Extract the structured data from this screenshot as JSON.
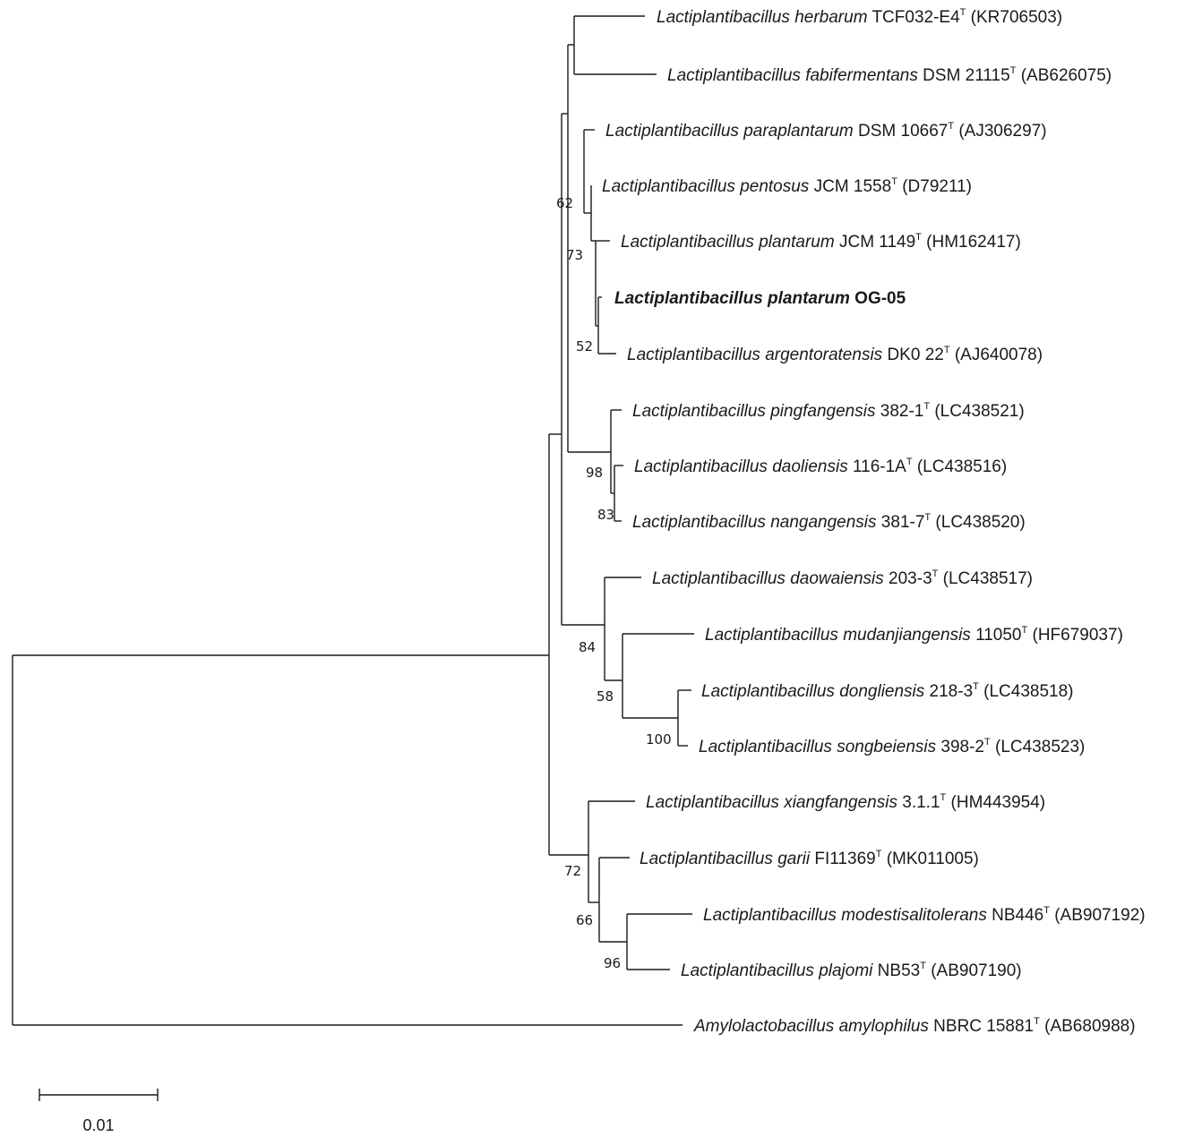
{
  "tree": {
    "taxa": [
      {
        "id": "herbarum",
        "genus": "Lactiplantibacillus",
        "species": "herbarum",
        "strain": "TCF032-E4",
        "type_strain": true,
        "accession": "(KR706503)",
        "bold": false
      },
      {
        "id": "fabifermentans",
        "genus": "Lactiplantibacillus",
        "species": "fabifermentans",
        "strain": "DSM 21115",
        "type_strain": true,
        "accession": "(AB626075)",
        "bold": false
      },
      {
        "id": "paraplantarum",
        "genus": "Lactiplantibacillus",
        "species": "paraplantarum",
        "strain": "DSM 10667",
        "type_strain": true,
        "accession": "(AJ306297)",
        "bold": false
      },
      {
        "id": "pentosus",
        "genus": "Lactiplantibacillus",
        "species": "pentosus",
        "strain": "JCM 1558",
        "type_strain": true,
        "accession": "(D79211)",
        "bold": false
      },
      {
        "id": "plantarum",
        "genus": "Lactiplantibacillus",
        "species": "plantarum",
        "strain": "JCM 1149",
        "type_strain": true,
        "accession": "(HM162417)",
        "bold": false
      },
      {
        "id": "og05",
        "genus": "Lactiplantibacillus",
        "species": "plantarum",
        "strain": "OG-05",
        "type_strain": false,
        "accession": "",
        "bold": true
      },
      {
        "id": "argentoratensis",
        "genus": "Lactiplantibacillus",
        "species": "argentoratensis",
        "strain": "DK0 22",
        "type_strain": true,
        "accession": "(AJ640078)",
        "bold": false
      },
      {
        "id": "pingfangensis",
        "genus": "Lactiplantibacillus",
        "species": "pingfangensis",
        "strain": "382-1",
        "type_strain": true,
        "accession": "(LC438521)",
        "bold": false
      },
      {
        "id": "daoliensis",
        "genus": "Lactiplantibacillus",
        "species": "daoliensis",
        "strain": "116-1A",
        "type_strain": true,
        "accession": "(LC438516)",
        "bold": false
      },
      {
        "id": "nangangensis",
        "genus": "Lactiplantibacillus",
        "species": "nangangensis",
        "strain": "381-7",
        "type_strain": true,
        "accession": "(LC438520)",
        "bold": false
      },
      {
        "id": "daowaiensis",
        "genus": "Lactiplantibacillus",
        "species": "daowaiensis",
        "strain": "203-3",
        "type_strain": true,
        "accession": "(LC438517)",
        "bold": false
      },
      {
        "id": "mudanjiangensis",
        "genus": "Lactiplantibacillus",
        "species": "mudanjiangensis",
        "strain": "11050",
        "type_strain": true,
        "accession": "(HF679037)",
        "bold": false
      },
      {
        "id": "dongliensis",
        "genus": "Lactiplantibacillus",
        "species": "dongliensis",
        "strain": "218-3",
        "type_strain": true,
        "accession": "(LC438518)",
        "bold": false
      },
      {
        "id": "songbeiensis",
        "genus": "Lactiplantibacillus",
        "species": "songbeiensis",
        "strain": "398-2",
        "type_strain": true,
        "accession": "(LC438523)",
        "bold": false
      },
      {
        "id": "xiangfangensis",
        "genus": "Lactiplantibacillus",
        "species": "xiangfangensis",
        "strain": "3.1.1",
        "type_strain": true,
        "accession": "(HM443954)",
        "bold": false
      },
      {
        "id": "garii",
        "genus": "Lactiplantibacillus",
        "species": "garii",
        "strain": "FI11369",
        "type_strain": true,
        "accession": "(MK011005)",
        "bold": false
      },
      {
        "id": "modestisalitolerans",
        "genus": "Lactiplantibacillus",
        "species": "modestisalitolerans",
        "strain": "NB446",
        "type_strain": true,
        "accession": "(AB907192)",
        "bold": false
      },
      {
        "id": "plajomi",
        "genus": "Lactiplantibacillus",
        "species": "plajomi",
        "strain": "NB53",
        "type_strain": true,
        "accession": "(AB907190)",
        "bold": false
      },
      {
        "id": "amylophilus",
        "genus": "Amylolactobacillus",
        "species": "amylophilus",
        "strain": "NBRC 15881",
        "type_strain": true,
        "accession": "(AB680988)",
        "bold": false
      }
    ],
    "type_strain_mark": "T",
    "bootstrap_values": [
      "62",
      "73",
      "52",
      "98",
      "83",
      "84",
      "58",
      "100",
      "72",
      "66",
      "96"
    ],
    "scale_bar": {
      "label": "0.01",
      "value": 0.01
    },
    "line_color": "#1a1a1a"
  }
}
